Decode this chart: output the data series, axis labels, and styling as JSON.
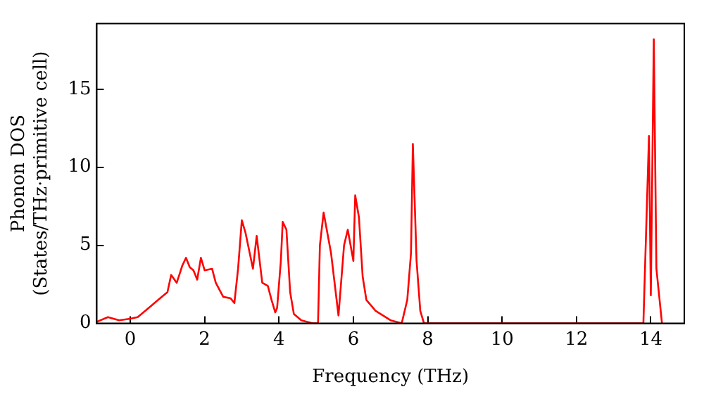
{
  "chart_data": {
    "type": "line",
    "xlabel": "Frequency (THz)",
    "ylabel": "Phonon DOS\n(States/THz·primitive cell)",
    "xlim": [
      -0.9,
      14.9
    ],
    "ylim": [
      0,
      19.2
    ],
    "xticks": [
      0,
      2,
      4,
      6,
      8,
      10,
      12,
      14
    ],
    "yticks": [
      0,
      5,
      10,
      15
    ],
    "grid": false,
    "legend": false,
    "marker": "none",
    "line_style": "solid",
    "series": [
      {
        "color": "#ff0000",
        "x": [
          -0.9,
          -0.6,
          -0.3,
          0,
          0.2,
          0.5,
          0.8,
          1.0,
          1.1,
          1.25,
          1.4,
          1.5,
          1.6,
          1.7,
          1.8,
          1.9,
          2.0,
          2.2,
          2.3,
          2.5,
          2.7,
          2.8,
          2.9,
          3.0,
          3.1,
          3.3,
          3.4,
          3.55,
          3.7,
          3.8,
          3.9,
          3.95,
          4.05,
          4.1,
          4.2,
          4.3,
          4.4,
          4.6,
          4.9,
          5.05,
          5.1,
          5.2,
          5.4,
          5.6,
          5.75,
          5.85,
          6.0,
          6.05,
          6.15,
          6.25,
          6.35,
          6.6,
          7.0,
          7.3,
          7.45,
          7.55,
          7.6,
          7.7,
          7.8,
          7.9,
          13.6,
          13.8,
          13.95,
          14.0,
          14.08,
          14.15,
          14.3
        ],
        "values": [
          0.1,
          0.4,
          0.2,
          0.3,
          0.4,
          1.0,
          1.6,
          2.0,
          3.1,
          2.6,
          3.7,
          4.2,
          3.6,
          3.4,
          2.8,
          4.2,
          3.4,
          3.5,
          2.6,
          1.7,
          1.6,
          1.3,
          3.5,
          6.6,
          5.8,
          3.5,
          5.6,
          2.6,
          2.4,
          1.5,
          0.7,
          1.0,
          4.0,
          6.5,
          6.0,
          2.0,
          0.6,
          0.2,
          0,
          0,
          5.0,
          7.1,
          4.5,
          0.5,
          5.0,
          6.0,
          4.0,
          8.2,
          6.8,
          3.0,
          1.5,
          0.8,
          0.2,
          0,
          1.5,
          4.5,
          11.5,
          4.0,
          0.8,
          0,
          0,
          0,
          12.0,
          1.8,
          18.2,
          3.5,
          0
        ]
      }
    ]
  }
}
